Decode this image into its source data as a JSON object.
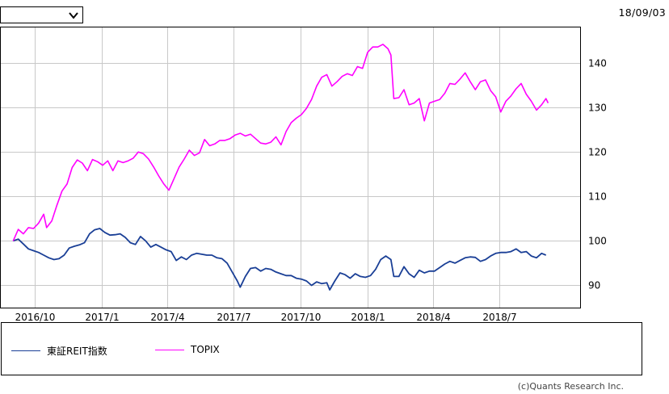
{
  "header": {
    "select_value": "",
    "date": "18/09/03"
  },
  "legend": {
    "items": [
      {
        "label": "東証REIT指数",
        "color": "#1a3f96"
      },
      {
        "label": "TOPIX",
        "color": "#ff00ff"
      }
    ]
  },
  "copyright": "(c)Quants Research Inc.",
  "chart_data": {
    "type": "line",
    "x_ticks": [
      "2016/10",
      "2017/1",
      "2017/4",
      "2017/7",
      "2017/10",
      "2018/1",
      "2018/4",
      "2018/7"
    ],
    "y_ticks": [
      90,
      100,
      110,
      120,
      130,
      140
    ],
    "ylim": [
      85,
      148
    ],
    "xlim": [
      "2016-08-15",
      "2018-10-20"
    ],
    "grid": true,
    "legend_position": "bottom",
    "series": [
      {
        "name": "東証REIT指数",
        "color": "#1a3f96",
        "points": [
          [
            "2016-09-01",
            100
          ],
          [
            "2016-09-08",
            100.4
          ],
          [
            "2016-09-15",
            99.3
          ],
          [
            "2016-09-22",
            98.2
          ],
          [
            "2016-09-29",
            97.8
          ],
          [
            "2016-10-06",
            97.4
          ],
          [
            "2016-10-13",
            96.8
          ],
          [
            "2016-10-20",
            96.2
          ],
          [
            "2016-10-27",
            95.8
          ],
          [
            "2016-11-03",
            96
          ],
          [
            "2016-11-10",
            96.8
          ],
          [
            "2016-11-17",
            98.4
          ],
          [
            "2016-11-24",
            98.8
          ],
          [
            "2016-12-01",
            99.1
          ],
          [
            "2016-12-08",
            99.6
          ],
          [
            "2016-12-15",
            101.6
          ],
          [
            "2016-12-22",
            102.5
          ],
          [
            "2016-12-29",
            102.8
          ],
          [
            "2017-01-05",
            101.9
          ],
          [
            "2017-01-12",
            101.3
          ],
          [
            "2017-01-19",
            101.4
          ],
          [
            "2017-01-26",
            101.6
          ],
          [
            "2017-02-02",
            100.8
          ],
          [
            "2017-02-09",
            99.6
          ],
          [
            "2017-02-16",
            99.2
          ],
          [
            "2017-02-23",
            101
          ],
          [
            "2017-03-02",
            100
          ],
          [
            "2017-03-09",
            98.6
          ],
          [
            "2017-03-16",
            99.2
          ],
          [
            "2017-03-23",
            98.6
          ],
          [
            "2017-03-30",
            98
          ],
          [
            "2017-04-06",
            97.6
          ],
          [
            "2017-04-13",
            95.6
          ],
          [
            "2017-04-20",
            96.4
          ],
          [
            "2017-04-27",
            95.8
          ],
          [
            "2017-05-04",
            96.8
          ],
          [
            "2017-05-11",
            97.2
          ],
          [
            "2017-05-18",
            97
          ],
          [
            "2017-05-25",
            96.8
          ],
          [
            "2017-06-01",
            96.8
          ],
          [
            "2017-06-08",
            96.2
          ],
          [
            "2017-06-15",
            96
          ],
          [
            "2017-06-22",
            95
          ],
          [
            "2017-06-29",
            93
          ],
          [
            "2017-07-06",
            91
          ],
          [
            "2017-07-10",
            89.6
          ],
          [
            "2017-07-17",
            92
          ],
          [
            "2017-07-24",
            93.8
          ],
          [
            "2017-07-31",
            94
          ],
          [
            "2017-08-07",
            93.2
          ],
          [
            "2017-08-14",
            93.8
          ],
          [
            "2017-08-21",
            93.6
          ],
          [
            "2017-08-28",
            93
          ],
          [
            "2017-09-04",
            92.6
          ],
          [
            "2017-09-11",
            92.2
          ],
          [
            "2017-09-18",
            92.2
          ],
          [
            "2017-09-25",
            91.6
          ],
          [
            "2017-10-02",
            91.4
          ],
          [
            "2017-10-09",
            91
          ],
          [
            "2017-10-16",
            90
          ],
          [
            "2017-10-23",
            90.8
          ],
          [
            "2017-10-30",
            90.4
          ],
          [
            "2017-11-06",
            90.6
          ],
          [
            "2017-11-10",
            89
          ],
          [
            "2017-11-17",
            91
          ],
          [
            "2017-11-24",
            92.8
          ],
          [
            "2017-12-01",
            92.4
          ],
          [
            "2017-12-08",
            91.6
          ],
          [
            "2017-12-15",
            92.6
          ],
          [
            "2017-12-22",
            92
          ],
          [
            "2017-12-29",
            91.8
          ],
          [
            "2018-01-05",
            92.2
          ],
          [
            "2018-01-12",
            93.6
          ],
          [
            "2018-01-19",
            95.8
          ],
          [
            "2018-01-26",
            96.6
          ],
          [
            "2018-02-02",
            95.8
          ],
          [
            "2018-02-06",
            92
          ],
          [
            "2018-02-13",
            92
          ],
          [
            "2018-02-20",
            94.2
          ],
          [
            "2018-02-27",
            92.6
          ],
          [
            "2018-03-06",
            91.8
          ],
          [
            "2018-03-13",
            93.4
          ],
          [
            "2018-03-20",
            92.8
          ],
          [
            "2018-03-27",
            93.2
          ],
          [
            "2018-04-03",
            93.2
          ],
          [
            "2018-04-10",
            94
          ],
          [
            "2018-04-17",
            94.8
          ],
          [
            "2018-04-24",
            95.4
          ],
          [
            "2018-05-01",
            95
          ],
          [
            "2018-05-08",
            95.6
          ],
          [
            "2018-05-15",
            96.2
          ],
          [
            "2018-05-22",
            96.4
          ],
          [
            "2018-05-29",
            96.3
          ],
          [
            "2018-06-05",
            95.4
          ],
          [
            "2018-06-12",
            95.8
          ],
          [
            "2018-06-19",
            96.6
          ],
          [
            "2018-06-26",
            97.2
          ],
          [
            "2018-07-03",
            97.4
          ],
          [
            "2018-07-10",
            97.4
          ],
          [
            "2018-07-17",
            97.6
          ],
          [
            "2018-07-24",
            98.2
          ],
          [
            "2018-07-31",
            97.4
          ],
          [
            "2018-08-07",
            97.6
          ],
          [
            "2018-08-14",
            96.6
          ],
          [
            "2018-08-21",
            96.2
          ],
          [
            "2018-08-28",
            97.2
          ],
          [
            "2018-09-03",
            96.8
          ]
        ]
      },
      {
        "name": "TOPIX",
        "color": "#ff00ff",
        "points": [
          [
            "2016-09-01",
            100
          ],
          [
            "2016-09-08",
            102.6
          ],
          [
            "2016-09-15",
            101.6
          ],
          [
            "2016-09-22",
            103
          ],
          [
            "2016-09-29",
            102.8
          ],
          [
            "2016-10-06",
            104
          ],
          [
            "2016-10-13",
            106
          ],
          [
            "2016-10-17",
            103
          ],
          [
            "2016-10-24",
            104.5
          ],
          [
            "2016-10-31",
            108
          ],
          [
            "2016-11-07",
            111.2
          ],
          [
            "2016-11-14",
            112.8
          ],
          [
            "2016-11-21",
            116.5
          ],
          [
            "2016-11-28",
            118.2
          ],
          [
            "2016-12-05",
            117.5
          ],
          [
            "2016-12-12",
            115.8
          ],
          [
            "2016-12-19",
            118.3
          ],
          [
            "2016-12-26",
            117.8
          ],
          [
            "2017-01-02",
            117
          ],
          [
            "2017-01-09",
            118
          ],
          [
            "2017-01-16",
            115.8
          ],
          [
            "2017-01-23",
            118
          ],
          [
            "2017-01-30",
            117.6
          ],
          [
            "2017-02-06",
            118
          ],
          [
            "2017-02-13",
            118.6
          ],
          [
            "2017-02-20",
            120
          ],
          [
            "2017-02-27",
            119.6
          ],
          [
            "2017-03-06",
            118.4
          ],
          [
            "2017-03-13",
            116.6
          ],
          [
            "2017-03-20",
            114.6
          ],
          [
            "2017-03-27",
            112.8
          ],
          [
            "2017-04-03",
            111.4
          ],
          [
            "2017-04-10",
            114
          ],
          [
            "2017-04-17",
            116.6
          ],
          [
            "2017-04-24",
            118.4
          ],
          [
            "2017-05-01",
            120.4
          ],
          [
            "2017-05-08",
            119.2
          ],
          [
            "2017-05-15",
            119.8
          ],
          [
            "2017-05-22",
            122.8
          ],
          [
            "2017-05-29",
            121.4
          ],
          [
            "2017-06-05",
            121.8
          ],
          [
            "2017-06-12",
            122.6
          ],
          [
            "2017-06-19",
            122.6
          ],
          [
            "2017-06-26",
            123
          ],
          [
            "2017-07-03",
            123.8
          ],
          [
            "2017-07-10",
            124.2
          ],
          [
            "2017-07-17",
            123.6
          ],
          [
            "2017-07-24",
            124
          ],
          [
            "2017-07-31",
            123
          ],
          [
            "2017-08-07",
            122
          ],
          [
            "2017-08-14",
            121.8
          ],
          [
            "2017-08-21",
            122.2
          ],
          [
            "2017-08-28",
            123.4
          ],
          [
            "2017-09-04",
            121.6
          ],
          [
            "2017-09-11",
            124.6
          ],
          [
            "2017-09-18",
            126.6
          ],
          [
            "2017-09-25",
            127.6
          ],
          [
            "2017-10-02",
            128.4
          ],
          [
            "2017-10-09",
            129.8
          ],
          [
            "2017-10-16",
            131.8
          ],
          [
            "2017-10-23",
            134.8
          ],
          [
            "2017-10-30",
            136.8
          ],
          [
            "2017-11-06",
            137.4
          ],
          [
            "2017-11-13",
            134.8
          ],
          [
            "2017-11-20",
            135.8
          ],
          [
            "2017-11-27",
            137
          ],
          [
            "2017-12-04",
            137.6
          ],
          [
            "2017-12-11",
            137.2
          ],
          [
            "2017-12-18",
            139.2
          ],
          [
            "2017-12-25",
            138.8
          ],
          [
            "2018-01-01",
            142.4
          ],
          [
            "2018-01-08",
            143.6
          ],
          [
            "2018-01-15",
            143.6
          ],
          [
            "2018-01-22",
            144.2
          ],
          [
            "2018-01-29",
            143.2
          ],
          [
            "2018-02-02",
            141.8
          ],
          [
            "2018-02-06",
            132
          ],
          [
            "2018-02-13",
            132.2
          ],
          [
            "2018-02-20",
            134
          ],
          [
            "2018-02-27",
            130.6
          ],
          [
            "2018-03-06",
            131
          ],
          [
            "2018-03-13",
            132
          ],
          [
            "2018-03-20",
            127
          ],
          [
            "2018-03-27",
            131
          ],
          [
            "2018-04-03",
            131.4
          ],
          [
            "2018-04-10",
            131.8
          ],
          [
            "2018-04-17",
            133.2
          ],
          [
            "2018-04-24",
            135.4
          ],
          [
            "2018-05-01",
            135.2
          ],
          [
            "2018-05-08",
            136.4
          ],
          [
            "2018-05-15",
            137.8
          ],
          [
            "2018-05-22",
            135.8
          ],
          [
            "2018-05-29",
            134
          ],
          [
            "2018-06-05",
            135.8
          ],
          [
            "2018-06-12",
            136.2
          ],
          [
            "2018-06-19",
            133.8
          ],
          [
            "2018-06-26",
            132.4
          ],
          [
            "2018-07-03",
            129
          ],
          [
            "2018-07-10",
            131.4
          ],
          [
            "2018-07-17",
            132.6
          ],
          [
            "2018-07-24",
            134.2
          ],
          [
            "2018-07-31",
            135.4
          ],
          [
            "2018-08-07",
            133
          ],
          [
            "2018-08-14",
            131.4
          ],
          [
            "2018-08-21",
            129.4
          ],
          [
            "2018-08-28",
            130.6
          ],
          [
            "2018-09-03",
            132
          ],
          [
            "2018-09-06",
            131
          ]
        ]
      }
    ]
  }
}
